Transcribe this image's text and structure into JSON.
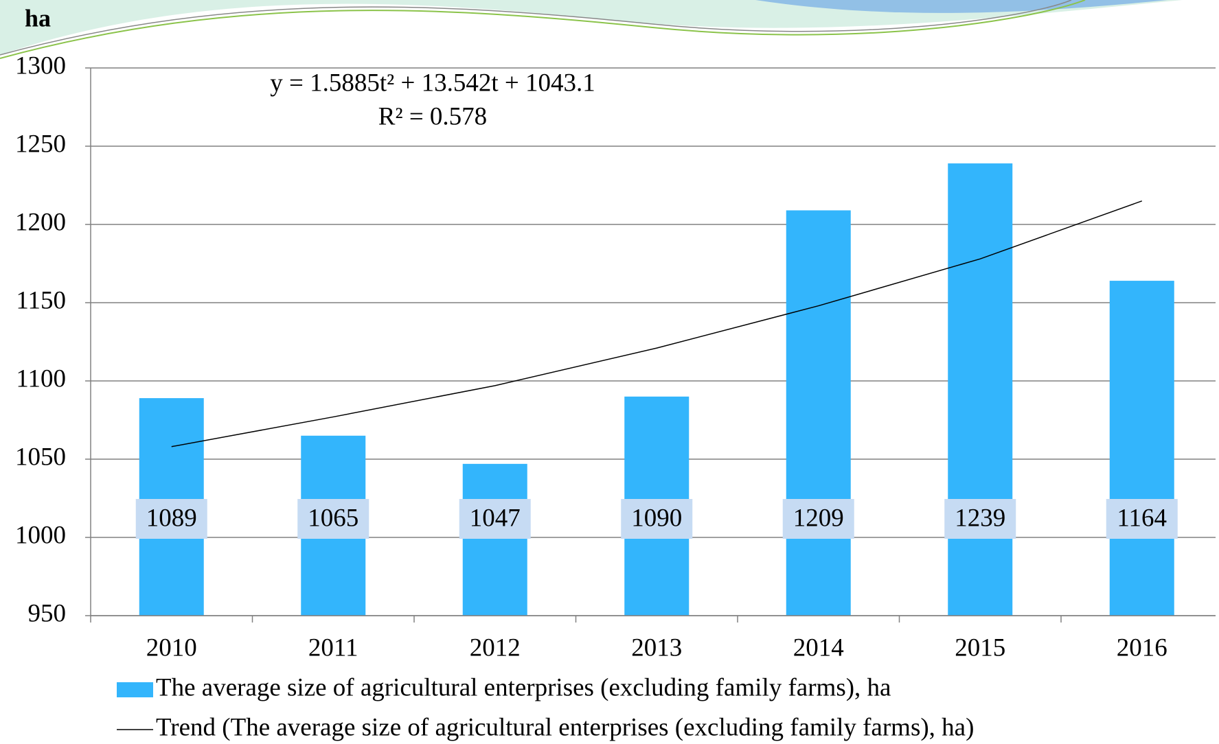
{
  "chart_data": {
    "type": "bar",
    "y_label": "ha",
    "annotations": [
      "y = 1.5885t² + 13.542t + 1043.1",
      "R² = 0.578"
    ],
    "categories": [
      "2010",
      "2011",
      "2012",
      "2013",
      "2014",
      "2015",
      "2016"
    ],
    "series": [
      {
        "name": "The average size of agricultural enterprises (excluding family farms), ha",
        "type": "bar",
        "color": "#33b5fc",
        "values": [
          1089,
          1065,
          1047,
          1090,
          1209,
          1239,
          1164
        ]
      },
      {
        "name": "Trend (The average size of agricultural enterprises (excluding family farms), ha)",
        "type": "line",
        "color": "#000000",
        "values": [
          1058,
          1077,
          1097,
          1121,
          1148,
          1178,
          1215
        ]
      }
    ],
    "ylim": [
      950,
      1300
    ],
    "yticks": [
      950,
      1000,
      1050,
      1100,
      1150,
      1200,
      1250,
      1300
    ],
    "grid": true
  }
}
